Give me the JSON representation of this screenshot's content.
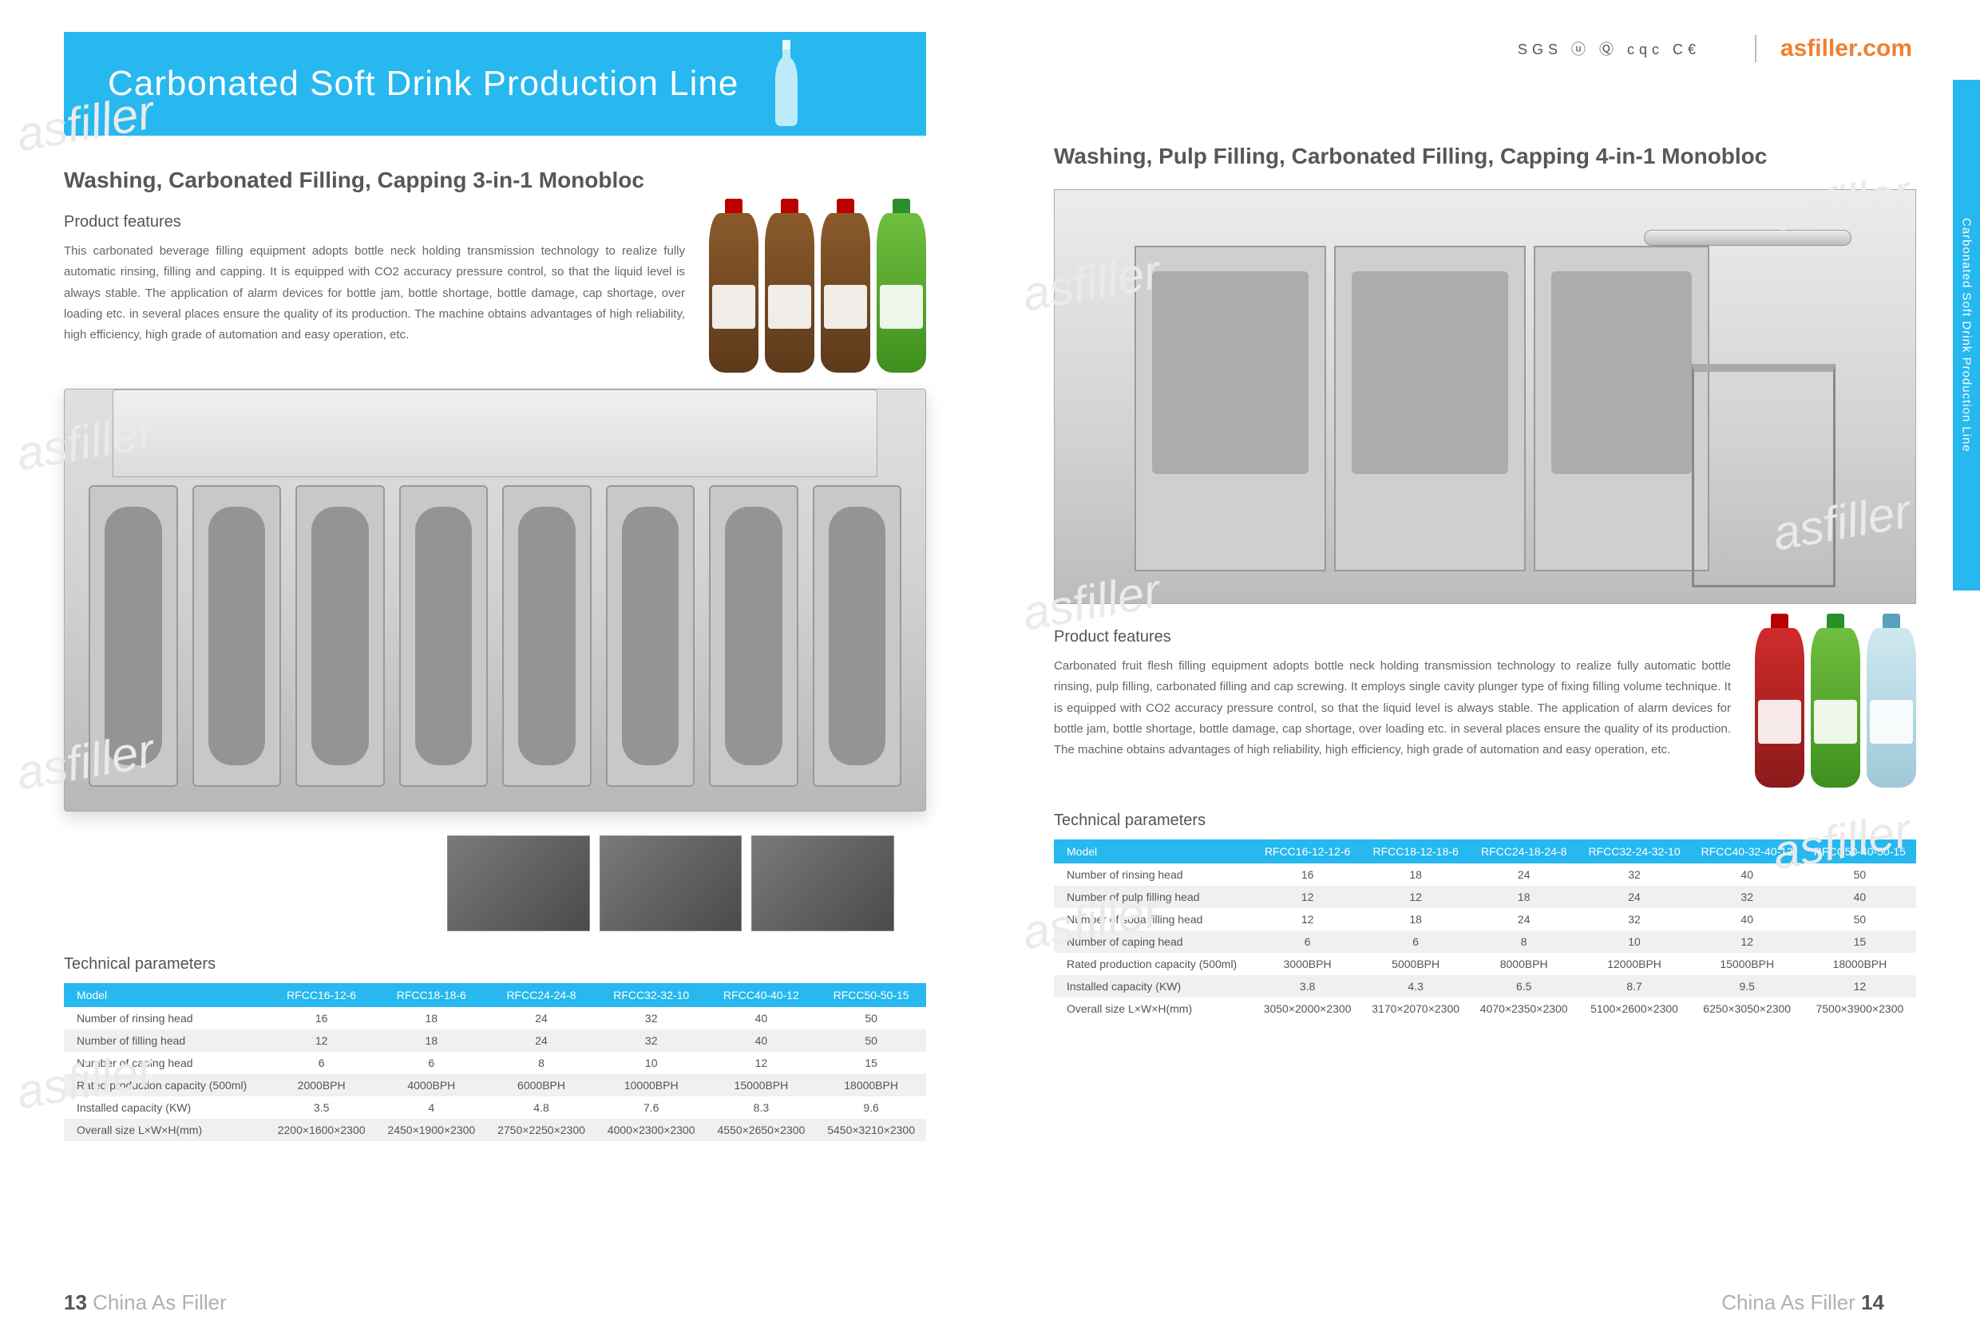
{
  "site_url": "asfiller.com",
  "cert_text": "SGS ⓤ Ⓠ cqc C€",
  "banner_title": "Carbonated Soft Drink Production Line",
  "side_tab_label": "Carbonated Soft Drink Production Line",
  "left": {
    "heading": "Washing, Carbonated Filling, Capping 3-in-1 Monobloc",
    "features_label": "Product features",
    "features_body": "This carbonated beverage filling equipment adopts bottle neck holding transmission technology to realize fully automatic rinsing, filling and capping. It is equipped with CO2 accuracy pressure control, so that the liquid level is always stable. The application of alarm devices for bottle jam, bottle shortage, bottle damage, cap shortage, over loading etc. in several places ensure the quality of its production. The machine obtains advantages of high reliability, high efficiency, high grade of automation and easy operation, etc.",
    "tech_heading": "Technical parameters",
    "table": {
      "header_bg": "#26b8ef",
      "header_fg": "#ffffff",
      "row_alt_bg": "#f0f0f0",
      "columns": [
        "Model",
        "RFCC16-12-6",
        "RFCC18-18-6",
        "RFCC24-24-8",
        "RFCC32-32-10",
        "RFCC40-40-12",
        "RFCC50-50-15"
      ],
      "rows": [
        [
          "Number of rinsing head",
          "16",
          "18",
          "24",
          "32",
          "40",
          "50"
        ],
        [
          "Number of filling head",
          "12",
          "18",
          "24",
          "32",
          "40",
          "50"
        ],
        [
          "Number of caping head",
          "6",
          "6",
          "8",
          "10",
          "12",
          "15"
        ],
        [
          "Rated production capacity (500ml)",
          "2000BPH",
          "4000BPH",
          "6000BPH",
          "10000BPH",
          "15000BPH",
          "18000BPH"
        ],
        [
          "Installed capacity (KW)",
          "3.5",
          "4",
          "4.8",
          "7.6",
          "8.3",
          "9.6"
        ],
        [
          "Overall size L×W×H(mm)",
          "2200×1600×2300",
          "2450×1900×2300",
          "2750×2250×2300",
          "4000×2300×2300",
          "4550×2650×2300",
          "5450×3210×2300"
        ]
      ]
    },
    "footer_num": "13",
    "footer_label": "China As Filler"
  },
  "right": {
    "heading": "Washing, Pulp Filling, Carbonated Filling, Capping 4-in-1 Monobloc",
    "features_label": "Product features",
    "features_body": "Carbonated fruit flesh filling equipment adopts bottle neck holding transmission technology to realize fully automatic bottle rinsing, pulp filling, carbonated filling and cap screwing. It employs single cavity plunger type of fixing filling volume technique. It is equipped with CO2 accuracy pressure control, so that the liquid level is always stable. The application of alarm devices for bottle jam, bottle shortage, bottle damage, cap shortage, over loading etc. in several places ensure the quality of its production. The machine obtains advantages of high reliability, high efficiency, high grade of automation and easy operation, etc.",
    "tech_heading": "Technical parameters",
    "table": {
      "header_bg": "#26b8ef",
      "header_fg": "#ffffff",
      "row_alt_bg": "#f0f0f0",
      "columns": [
        "Model",
        "RFCC16-12-12-6",
        "RFCC18-12-18-6",
        "RFCC24-18-24-8",
        "RFCC32-24-32-10",
        "RFCC40-32-40-12",
        "RFCC50-40-50-15"
      ],
      "rows": [
        [
          "Number of rinsing head",
          "16",
          "18",
          "24",
          "32",
          "40",
          "50"
        ],
        [
          "Number of pulp filling head",
          "12",
          "12",
          "18",
          "24",
          "32",
          "40"
        ],
        [
          "Number of soda filling head",
          "12",
          "18",
          "24",
          "32",
          "40",
          "50"
        ],
        [
          "Number of caping head",
          "6",
          "6",
          "8",
          "10",
          "12",
          "15"
        ],
        [
          "Rated production capacity (500ml)",
          "3000BPH",
          "5000BPH",
          "8000BPH",
          "12000BPH",
          "15000BPH",
          "18000BPH"
        ],
        [
          "Installed capacity (KW)",
          "3.8",
          "4.3",
          "6.5",
          "8.7",
          "9.5",
          "12"
        ],
        [
          "Overall size L×W×H(mm)",
          "3050×2000×2300",
          "3170×2070×2300",
          "4070×2350×2300",
          "5100×2600×2300",
          "6250×3050×2300",
          "7500×3900×2300"
        ]
      ]
    },
    "footer_num": "14",
    "footer_label": "China As Filler"
  },
  "colors": {
    "brand_blue": "#26b8ef",
    "heading_gray": "#575757",
    "body_gray": "#666666",
    "page_bg": "#ffffff",
    "url_orange": "#f08030"
  }
}
